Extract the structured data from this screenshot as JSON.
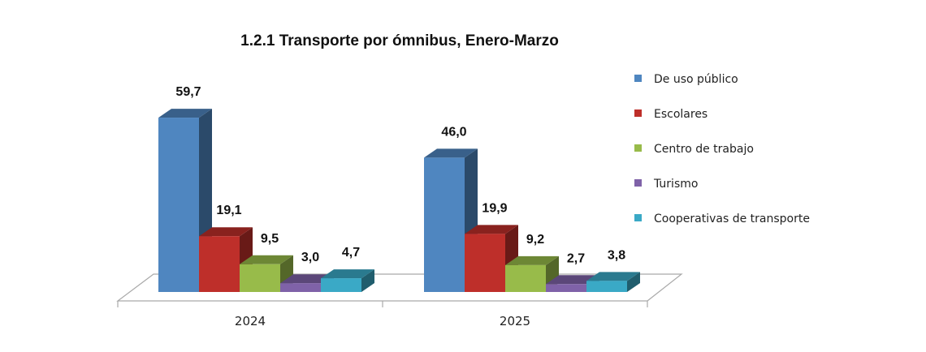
{
  "chart_data": {
    "type": "bar",
    "style": "3d-clustered-column",
    "title": "1.2.1 Transporte por ómnibus, Enero-Marzo",
    "xlabel": "",
    "ylabel": "",
    "ylim": [
      0,
      60
    ],
    "categories": [
      "2024",
      "2025"
    ],
    "series": [
      {
        "name": "De uso público",
        "values": [
          59.7,
          46.0
        ],
        "labels": [
          "59,7",
          "46,0"
        ],
        "color": "#4f86c0"
      },
      {
        "name": "Escolares",
        "values": [
          19.1,
          19.9
        ],
        "labels": [
          "19,1",
          "19,9"
        ],
        "color": "#be2f2a"
      },
      {
        "name": "Centro de trabajo",
        "values": [
          9.5,
          9.2
        ],
        "labels": [
          "9,5",
          "9,2"
        ],
        "color": "#98bb4a"
      },
      {
        "name": "Turismo",
        "values": [
          3.0,
          2.7
        ],
        "labels": [
          "3,0",
          "2,7"
        ],
        "color": "#7f62a8"
      },
      {
        "name": "Cooperativas de transporte",
        "values": [
          4.7,
          3.8
        ],
        "labels": [
          "4,7",
          "3,8"
        ],
        "color": "#3aa9c6"
      }
    ],
    "legend": "right",
    "grid": false
  }
}
